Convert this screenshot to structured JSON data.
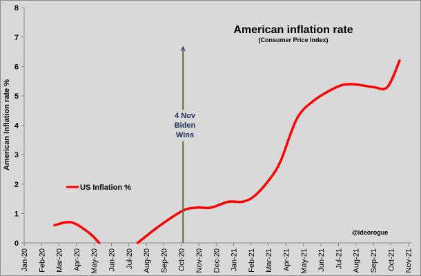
{
  "chart_data": {
    "type": "line",
    "title": "American inflation rate",
    "subtitle": "(Consumer Price Index)",
    "xlabel": "",
    "ylabel": "American Inflation rate %",
    "ylim": [
      0,
      8
    ],
    "yticks": [
      0,
      1,
      2,
      3,
      4,
      5,
      6,
      7,
      8
    ],
    "categories": [
      "Jan-20",
      "Feb-20",
      "Mar-20",
      "Apr-20",
      "May-20",
      "Jun-20",
      "Jul-20",
      "Aug-20",
      "Sep-20",
      "Oct-20",
      "Nov-20",
      "Dec-20",
      "Jan-21",
      "Feb-21",
      "Mar-21",
      "Apr-21",
      "May-21",
      "Jun-21",
      "Jul-21",
      "Aug-21",
      "Sep-21",
      "Oct-21",
      "Nov-21"
    ],
    "grid": false,
    "legend": "left",
    "series": [
      {
        "name": "US Inflation %",
        "color": "#ff0000",
        "points": [
          [
            1.74,
            0.6
          ],
          [
            2.7,
            0.7
          ],
          [
            3.7,
            0.35
          ],
          [
            4.3,
            0
          ],
          null,
          [
            6.5,
            0
          ],
          [
            7.8,
            0.6
          ],
          [
            9.1,
            1.1
          ],
          [
            9.9,
            1.2
          ],
          [
            10.7,
            1.2
          ],
          [
            11.7,
            1.4
          ],
          [
            12.5,
            1.4
          ],
          [
            13.2,
            1.6
          ],
          [
            14.1,
            2.2
          ],
          [
            14.7,
            2.8
          ],
          [
            15.6,
            4.2
          ],
          [
            16.5,
            4.8
          ],
          [
            17.9,
            5.3
          ],
          [
            18.8,
            5.4
          ],
          [
            20,
            5.3
          ],
          [
            20.8,
            5.3
          ],
          [
            21.5,
            6.2
          ]
        ]
      }
    ],
    "annotations": {
      "event": {
        "line1": "4 Nov",
        "line2": "Biden",
        "line3": "Wins",
        "x": 9.1
      },
      "watermark": "@ideorogue"
    }
  }
}
